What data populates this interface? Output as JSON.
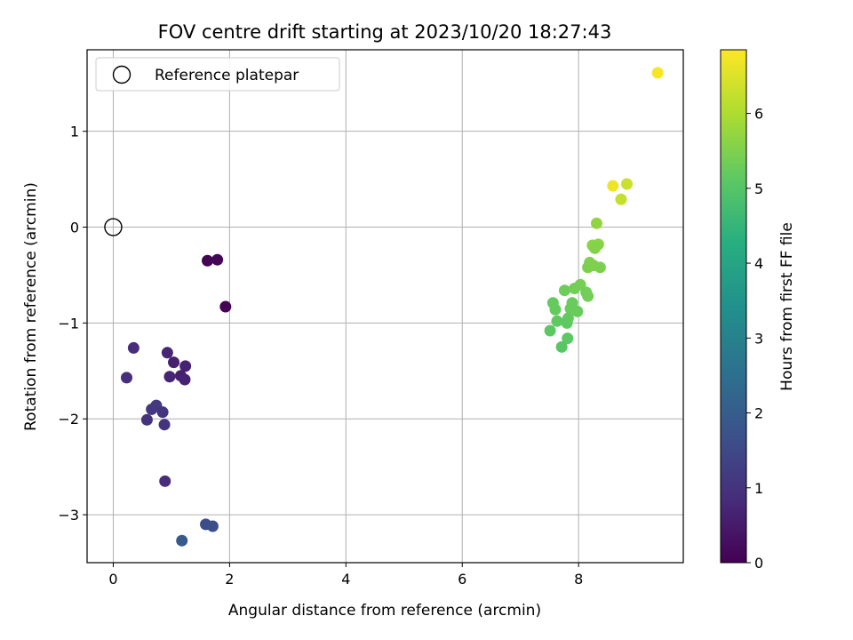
{
  "chart_data": {
    "type": "scatter",
    "title": "FOV centre drift starting at 2023/10/20 18:27:43",
    "xlabel": "Angular distance from reference (arcmin)",
    "ylabel": "Rotation from reference (arcmin)",
    "xlim": [
      -0.45,
      9.8
    ],
    "ylim": [
      -3.5,
      1.85
    ],
    "xticks": [
      0,
      2,
      4,
      6,
      8
    ],
    "yticks": [
      -3,
      -2,
      -1,
      0,
      1
    ],
    "xtick_labels": [
      "0",
      "2",
      "4",
      "6",
      "8"
    ],
    "ytick_labels": [
      "−3",
      "−2",
      "−1",
      "0",
      "1"
    ],
    "grid": true,
    "legend": {
      "position": "upper-left",
      "entries": [
        {
          "label": "Reference platepar",
          "marker": "open-circle"
        }
      ]
    },
    "reference_point": {
      "x": 0,
      "y": 0
    },
    "colorbar": {
      "label": "Hours from first FF file",
      "colormap": "viridis",
      "range": [
        0,
        6.85
      ],
      "ticks": [
        0,
        1,
        2,
        3,
        4,
        5,
        6
      ],
      "tick_labels": [
        "0",
        "1",
        "2",
        "3",
        "4",
        "5",
        "6"
      ]
    },
    "points": [
      {
        "x": 1.62,
        "y": -0.35,
        "c": 0.05
      },
      {
        "x": 1.79,
        "y": -0.34,
        "c": 0.08
      },
      {
        "x": 1.93,
        "y": -0.83,
        "c": 0.03
      },
      {
        "x": 0.35,
        "y": -1.26,
        "c": 0.85
      },
      {
        "x": 0.93,
        "y": -1.31,
        "c": 0.7
      },
      {
        "x": 1.04,
        "y": -1.41,
        "c": 0.6
      },
      {
        "x": 1.24,
        "y": -1.45,
        "c": 0.65
      },
      {
        "x": 0.97,
        "y": -1.56,
        "c": 0.7
      },
      {
        "x": 1.16,
        "y": -1.55,
        "c": 0.6
      },
      {
        "x": 1.23,
        "y": -1.59,
        "c": 0.65
      },
      {
        "x": 0.23,
        "y": -1.57,
        "c": 0.9
      },
      {
        "x": 0.74,
        "y": -1.86,
        "c": 1.15
      },
      {
        "x": 0.66,
        "y": -1.9,
        "c": 1.1
      },
      {
        "x": 0.85,
        "y": -1.93,
        "c": 1.05
      },
      {
        "x": 0.58,
        "y": -2.01,
        "c": 1.0
      },
      {
        "x": 0.88,
        "y": -2.06,
        "c": 1.0
      },
      {
        "x": 0.89,
        "y": -2.65,
        "c": 0.85
      },
      {
        "x": 1.59,
        "y": -3.1,
        "c": 1.6
      },
      {
        "x": 1.71,
        "y": -3.12,
        "c": 1.65
      },
      {
        "x": 1.18,
        "y": -3.27,
        "c": 1.9
      },
      {
        "x": 8.31,
        "y": 0.04,
        "c": 5.7
      },
      {
        "x": 8.24,
        "y": -0.19,
        "c": 5.6
      },
      {
        "x": 8.34,
        "y": -0.18,
        "c": 5.6
      },
      {
        "x": 8.28,
        "y": -0.22,
        "c": 5.55
      },
      {
        "x": 8.19,
        "y": -0.37,
        "c": 5.5
      },
      {
        "x": 8.16,
        "y": -0.42,
        "c": 5.45
      },
      {
        "x": 8.37,
        "y": -0.42,
        "c": 5.45
      },
      {
        "x": 8.26,
        "y": -0.4,
        "c": 5.5
      },
      {
        "x": 8.03,
        "y": -0.6,
        "c": 5.4
      },
      {
        "x": 7.76,
        "y": -0.66,
        "c": 5.3
      },
      {
        "x": 7.93,
        "y": -0.64,
        "c": 5.35
      },
      {
        "x": 8.13,
        "y": -0.68,
        "c": 5.35
      },
      {
        "x": 8.16,
        "y": -0.72,
        "c": 5.35
      },
      {
        "x": 7.56,
        "y": -0.79,
        "c": 5.2
      },
      {
        "x": 7.89,
        "y": -0.79,
        "c": 5.25
      },
      {
        "x": 7.86,
        "y": -0.85,
        "c": 5.25
      },
      {
        "x": 7.6,
        "y": -0.86,
        "c": 5.2
      },
      {
        "x": 7.98,
        "y": -0.88,
        "c": 5.25
      },
      {
        "x": 7.82,
        "y": -0.95,
        "c": 5.2
      },
      {
        "x": 7.63,
        "y": -0.98,
        "c": 5.15
      },
      {
        "x": 7.8,
        "y": -1.0,
        "c": 5.15
      },
      {
        "x": 7.51,
        "y": -1.08,
        "c": 5.1
      },
      {
        "x": 7.81,
        "y": -1.16,
        "c": 5.1
      },
      {
        "x": 7.71,
        "y": -1.25,
        "c": 5.05
      },
      {
        "x": 8.59,
        "y": 0.43,
        "c": 6.7
      },
      {
        "x": 8.83,
        "y": 0.45,
        "c": 6.3
      },
      {
        "x": 8.73,
        "y": 0.29,
        "c": 6.25
      },
      {
        "x": 9.36,
        "y": 1.61,
        "c": 6.8
      }
    ]
  }
}
